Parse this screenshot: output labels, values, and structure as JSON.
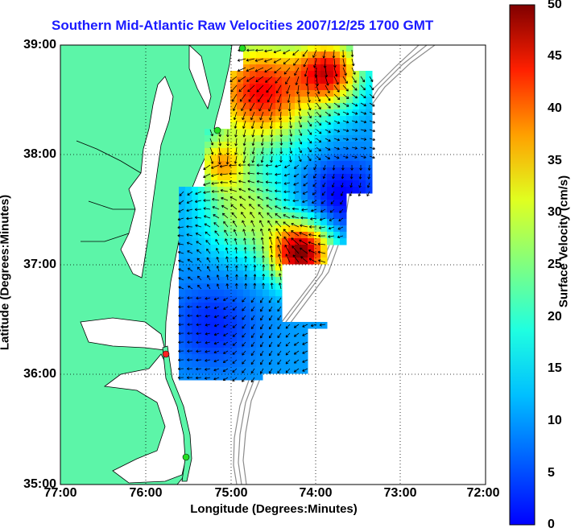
{
  "title": "Southern Mid-Atlantic Raw Velocities 2007/12/25 1700 GMT",
  "xlabel": "Longitude (Degrees:Minutes)",
  "ylabel": "Latitude (Degrees:Minutes)",
  "colorbar_label": "Surface Velocity (cm/s)",
  "x_ticks": [
    "77:00",
    "76:00",
    "75:00",
    "74:00",
    "73:00",
    "72:00"
  ],
  "y_ticks": [
    "39:00",
    "38:00",
    "37:00",
    "36:00",
    "35:00"
  ],
  "colorbar_ticks": [
    "50",
    "45",
    "40",
    "35",
    "30",
    "25",
    "20",
    "15",
    "10",
    "5",
    "0"
  ],
  "colors": {
    "land": "#5cf5a8",
    "coast_line": "#000000",
    "bathymetry": "#8c8c8c",
    "grid": "#000000",
    "title": "#1a1aff",
    "site_marker_active": "#22dd22",
    "site_marker_inactive": "#ff2020"
  },
  "colormap": "jet",
  "grid": true,
  "range": {
    "lon": [
      -77,
      -72
    ],
    "lat": [
      35,
      39
    ],
    "velocity": [
      0,
      50
    ]
  }
}
